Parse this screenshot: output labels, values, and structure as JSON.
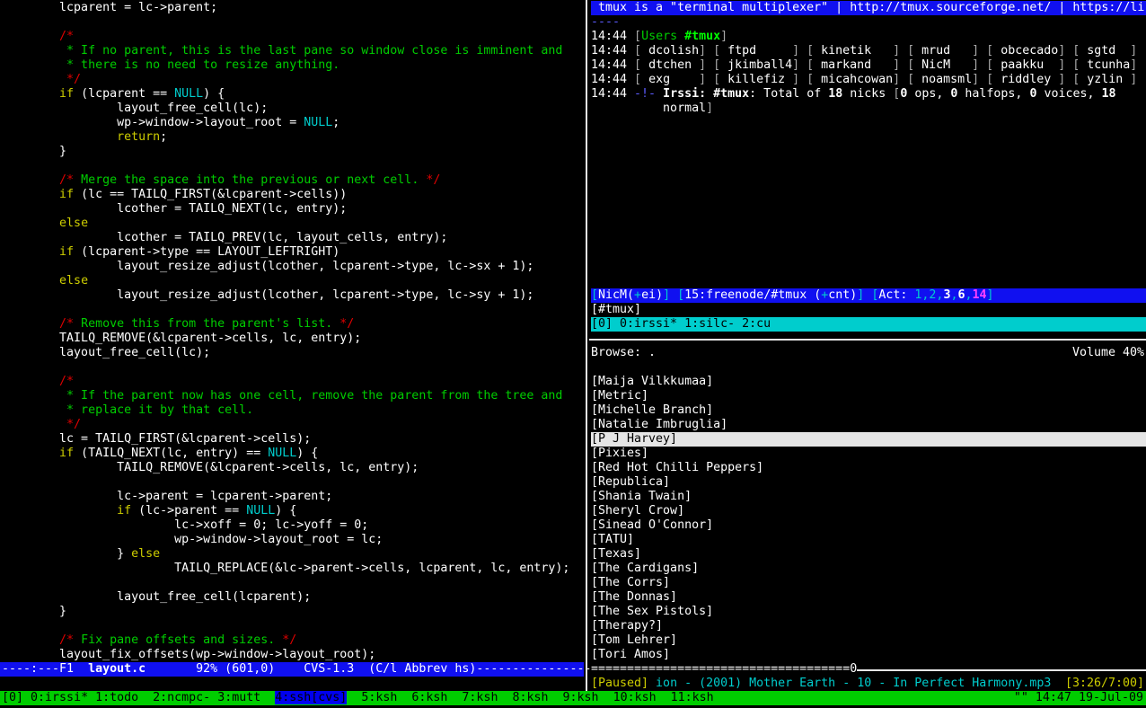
{
  "colors": {
    "status_bg": "#00cd00",
    "modeline_bg": "#1010f0",
    "irssi_window_bg": "#00cdcd",
    "comment": "#00cd00",
    "comment_delim": "#e00000",
    "keyword": "#cdcd00",
    "constant": "#00cdcd"
  },
  "editor": {
    "lines": [
      [
        [
          "        lcparent = lc->parent;",
          "w"
        ]
      ],
      [],
      [
        [
          "        /*",
          "r"
        ]
      ],
      [
        [
          "         * If no parent, this is the last pane so window close is imminent and",
          "g"
        ]
      ],
      [
        [
          "         * there is no need to resize anything.",
          "g"
        ]
      ],
      [
        [
          "         */",
          "r"
        ]
      ],
      [
        [
          "        ",
          "w"
        ],
        [
          "if",
          "y"
        ],
        [
          " (lcparent == ",
          "w"
        ],
        [
          "NULL",
          "c"
        ],
        [
          ") {",
          "w"
        ]
      ],
      [
        [
          "                layout_free_cell(lc);",
          "w"
        ]
      ],
      [
        [
          "                wp->window->layout_root = ",
          "w"
        ],
        [
          "NULL",
          "c"
        ],
        [
          ";",
          "w"
        ]
      ],
      [
        [
          "                ",
          "w"
        ],
        [
          "return",
          "y"
        ],
        [
          ";",
          "w"
        ]
      ],
      [
        [
          "        }",
          "w"
        ]
      ],
      [],
      [
        [
          "        /*",
          "r"
        ],
        [
          " Merge the space into the previous or next cell. ",
          "g"
        ],
        [
          "*/",
          "r"
        ]
      ],
      [
        [
          "        ",
          "w"
        ],
        [
          "if",
          "y"
        ],
        [
          " (lc == TAILQ_FIRST(&lcparent->cells))",
          "w"
        ]
      ],
      [
        [
          "                lcother = TAILQ_NEXT(lc, entry);",
          "w"
        ]
      ],
      [
        [
          "        ",
          "w"
        ],
        [
          "else",
          "y"
        ]
      ],
      [
        [
          "                lcother = TAILQ_PREV(lc, layout_cells, entry);",
          "w"
        ]
      ],
      [
        [
          "        ",
          "w"
        ],
        [
          "if",
          "y"
        ],
        [
          " (lcparent->type == LAYOUT_LEFTRIGHT)",
          "w"
        ]
      ],
      [
        [
          "                layout_resize_adjust(lcother, lcparent->type, lc->sx + 1);",
          "w"
        ]
      ],
      [
        [
          "        ",
          "w"
        ],
        [
          "else",
          "y"
        ]
      ],
      [
        [
          "                layout_resize_adjust(lcother, lcparent->type, lc->sy + 1);",
          "w"
        ]
      ],
      [],
      [
        [
          "        /*",
          "r"
        ],
        [
          " Remove this from the parent's list. ",
          "g"
        ],
        [
          "*/",
          "r"
        ]
      ],
      [
        [
          "        TAILQ_REMOVE(&lcparent->cells, lc, entry);",
          "w"
        ]
      ],
      [
        [
          "        layout_free_cell(lc);",
          "w"
        ]
      ],
      [],
      [
        [
          "        /*",
          "r"
        ]
      ],
      [
        [
          "         * If the parent now has one cell, remove the parent from the tree and",
          "g"
        ]
      ],
      [
        [
          "         * replace it by that cell.",
          "g"
        ]
      ],
      [
        [
          "         */",
          "r"
        ]
      ],
      [
        [
          "        lc = TAILQ_FIRST(&lcparent->cells);",
          "w"
        ]
      ],
      [
        [
          "        ",
          "w"
        ],
        [
          "if",
          "y"
        ],
        [
          " (TAILQ_NEXT(lc, entry) == ",
          "w"
        ],
        [
          "NULL",
          "c"
        ],
        [
          ") {",
          "w"
        ]
      ],
      [
        [
          "                TAILQ_REMOVE(&lcparent->cells, lc, entry);",
          "w"
        ]
      ],
      [],
      [
        [
          "                lc->parent = lcparent->parent;",
          "w"
        ]
      ],
      [
        [
          "                ",
          "w"
        ],
        [
          "if",
          "y"
        ],
        [
          " (lc->parent == ",
          "w"
        ],
        [
          "NULL",
          "c"
        ],
        [
          ") {",
          "w"
        ]
      ],
      [
        [
          "                        lc->xoff = 0; lc->yoff = 0;",
          "w"
        ]
      ],
      [
        [
          "                        wp->window->layout_root = lc;",
          "w"
        ]
      ],
      [
        [
          "                } ",
          "w"
        ],
        [
          "else",
          "y"
        ]
      ],
      [
        [
          "                        TAILQ_REPLACE(&lc->parent->cells, lcparent, lc, entry);",
          "w"
        ]
      ],
      [],
      [
        [
          "                layout_free_cell(lcparent);",
          "w"
        ]
      ],
      [
        [
          "        }",
          "w"
        ]
      ],
      [],
      [
        [
          "        /*",
          "r"
        ],
        [
          " Fix pane offsets and sizes. ",
          "g"
        ],
        [
          "*/",
          "r"
        ]
      ],
      [
        [
          "        layout_fix_offsets(wp->window->layout_root);",
          "w"
        ]
      ]
    ],
    "modeline": [
      [
        "----:---F1  ",
        "w"
      ],
      [
        "layout.c",
        "wb"
      ],
      [
        "       92% (601,0)    CVS-1.3  (C/l Abbrev hs)----------------",
        "w"
      ]
    ]
  },
  "irssi": {
    "topic": " tmux is a \"terminal multiplexer\" | http://tmux.sourceforge.net/ | https://li",
    "topic_rule": "----",
    "users_line": [
      [
        "14:44 ",
        "w"
      ],
      [
        "[",
        "gr"
      ],
      [
        "Users ",
        "g"
      ],
      [
        "#tmux",
        "gb"
      ],
      [
        "]",
        "gr"
      ]
    ],
    "nick_time": "14:44",
    "nicks": [
      [
        "dcolish",
        "ftpd",
        "kinetik",
        "mrud",
        "obcecado",
        "sgtd"
      ],
      [
        "dtchen",
        "jkimball4",
        "markand",
        "NicM",
        "paakku",
        "tcunha"
      ],
      [
        "exg",
        "killefiz",
        "micahcowan",
        "noamsml",
        "riddley",
        "yzlin"
      ]
    ],
    "total_line": [
      [
        "14:44 ",
        "w"
      ],
      [
        "-!- ",
        "b"
      ],
      [
        "Irssi:",
        "wb"
      ],
      [
        " ",
        "w"
      ],
      [
        "#tmux",
        "wb"
      ],
      [
        ": Total of ",
        "w"
      ],
      [
        "18",
        "wb"
      ],
      [
        " nicks ",
        "w"
      ],
      [
        "[",
        "gr"
      ],
      [
        "0",
        "wb"
      ],
      [
        " ops, ",
        "w"
      ],
      [
        "0",
        "wb"
      ],
      [
        " halfops, ",
        "w"
      ],
      [
        "0",
        "wb"
      ],
      [
        " voices, ",
        "w"
      ],
      [
        "18",
        "wb"
      ]
    ],
    "total_line_cont": [
      [
        "          normal",
        "w"
      ],
      [
        "]",
        "gr"
      ]
    ],
    "statusbar": [
      [
        "[",
        "c"
      ],
      [
        "NicM(",
        "w"
      ],
      [
        "+",
        "c"
      ],
      [
        "ei)",
        "w"
      ],
      [
        "]",
        "c"
      ],
      [
        " ",
        "w"
      ],
      [
        "[",
        "c"
      ],
      [
        "15:freenode/#tmux (",
        "w"
      ],
      [
        "+",
        "c"
      ],
      [
        "cnt)",
        "w"
      ],
      [
        "]",
        "c"
      ],
      [
        " ",
        "w"
      ],
      [
        "[",
        "c"
      ],
      [
        "Act: ",
        "w"
      ],
      [
        "1",
        "c"
      ],
      [
        ",",
        "c"
      ],
      [
        "2",
        "c"
      ],
      [
        ",",
        "c"
      ],
      [
        "3",
        "wb"
      ],
      [
        ",",
        "c"
      ],
      [
        "6",
        "wb"
      ],
      [
        ",",
        "c"
      ],
      [
        "14",
        "mb"
      ],
      [
        "]",
        "c"
      ]
    ],
    "prompt": "[#tmux]",
    "nested_status": "[0] 0:irssi* 1:silc- 2:cu"
  },
  "ncmpc": {
    "header_left": "Browse: .",
    "header_right": "Volume 40%",
    "artists": [
      "[Maija Vilkkumaa]",
      "[Metric]",
      "[Michelle Branch]",
      "[Natalie Imbruglia]",
      "[P J Harvey]",
      "[Pixies]",
      "[Red Hot Chilli Peppers]",
      "[Republica]",
      "[Shania Twain]",
      "[Sheryl Crow]",
      "[Sinead O'Connor]",
      "[TATU]",
      "[Texas]",
      "[The Cardigans]",
      "[The Corrs]",
      "[The Donnas]",
      "[The Sex Pistols]",
      "[Therapy?]",
      "[Tom Lehrer]",
      "[Tori Amos]"
    ],
    "selected_index": 4,
    "progress": 0.49,
    "state": "[Paused]",
    "track": " ion - (2001) Mother Earth - 10 - In Perfect Harmony.mp3",
    "time": "[3:26/7:00]"
  },
  "tmux_status": {
    "session": "[0] ",
    "windows": [
      {
        "label": "0:irssi* ",
        "current": false
      },
      {
        "label": "1:todo  ",
        "current": false
      },
      {
        "label": "2:ncmpc- ",
        "current": false
      },
      {
        "label": "3:mutt  ",
        "current": false
      },
      {
        "label": "4:ssh[cvs]",
        "current": true
      },
      {
        "label": "  5:ksh  ",
        "current": false
      },
      {
        "label": "6:ksh  ",
        "current": false
      },
      {
        "label": "7:ksh  ",
        "current": false
      },
      {
        "label": "8:ksh  ",
        "current": false
      },
      {
        "label": "9:ksh  ",
        "current": false
      },
      {
        "label": "10:ksh  ",
        "current": false
      },
      {
        "label": "11:ksh",
        "current": false
      }
    ],
    "right": "\"\" 14:47 19-Jul-09"
  }
}
